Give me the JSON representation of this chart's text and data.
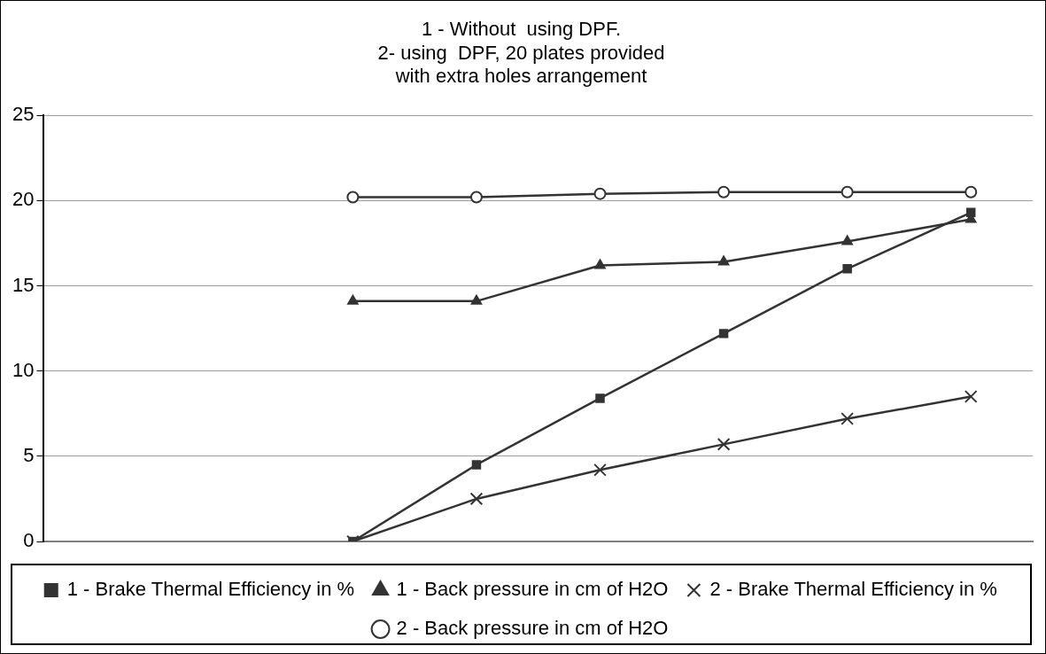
{
  "chart_data": {
    "type": "line",
    "title": "1 - Without  using DPF.\n2- using  DPF, 20 plates provided\nwith extra holes arrangement",
    "categories": [
      null,
      null,
      null,
      null,
      null,
      null,
      null,
      null
    ],
    "series": [
      {
        "name": "1 - Brake Thermal Efficiency in %",
        "color": "#333333",
        "marker": "square",
        "values": [
          null,
          null,
          0,
          4.5,
          8.4,
          12.2,
          16.0,
          19.3
        ]
      },
      {
        "name": "1 - Back pressure in cm of H2O",
        "color": "#333333",
        "marker": "triangle",
        "values": [
          null,
          null,
          14.1,
          14.1,
          16.2,
          16.4,
          17.6,
          18.9
        ]
      },
      {
        "name": "2 - Brake Thermal Efficiency in %",
        "color": "#333333",
        "marker": "cross",
        "values": [
          null,
          null,
          0,
          2.5,
          4.2,
          5.7,
          7.2,
          8.5
        ]
      },
      {
        "name": "2 - Back pressure in cm of H2O",
        "color": "#333333",
        "marker": "circle",
        "values": [
          null,
          null,
          20.2,
          20.2,
          20.4,
          20.5,
          20.5,
          20.5
        ]
      }
    ],
    "ylim": [
      0,
      25
    ],
    "yticks": [
      0,
      5,
      10,
      15,
      20,
      25
    ],
    "grid": "y",
    "legend": "bottom",
    "tick_labels": "y"
  }
}
